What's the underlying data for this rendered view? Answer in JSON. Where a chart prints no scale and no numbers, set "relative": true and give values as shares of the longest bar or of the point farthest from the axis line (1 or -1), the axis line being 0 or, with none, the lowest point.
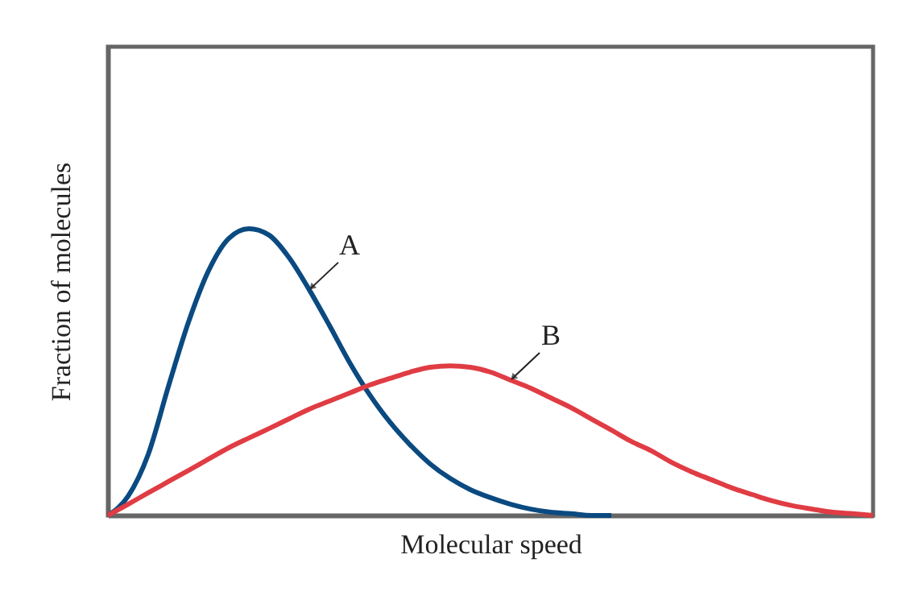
{
  "chart_data": {
    "type": "line",
    "relative": true,
    "xlabel": "Molecular speed",
    "ylabel": "Fraction of molecules",
    "categories": [
      null,
      null,
      null,
      null,
      null,
      null,
      null,
      null,
      null,
      null,
      null,
      null,
      null,
      null,
      null,
      null,
      null,
      null,
      null,
      null,
      null,
      null,
      null,
      null,
      null,
      null,
      null,
      null,
      null,
      null,
      null,
      null,
      null,
      null,
      null,
      null,
      null,
      null,
      null
    ],
    "series": [
      {
        "name": "A",
        "color": "#0a4a80",
        "values": [
          0,
          0.067,
          0.213,
          0.449,
          0.674,
          0.854,
          0.966,
          1,
          0.978,
          0.899,
          0.787,
          0.663,
          0.534,
          0.421,
          0.326,
          0.247,
          0.18,
          0.129,
          0.09,
          0.062,
          0.039,
          0.022,
          0.011,
          0.006,
          0,
          0,
          null,
          null,
          null,
          null,
          null,
          null,
          null,
          null,
          null,
          null,
          null,
          null,
          null
        ]
      },
      {
        "name": "B",
        "color": "#e03c44",
        "values": [
          0,
          0.039,
          0.079,
          0.118,
          0.157,
          0.197,
          0.236,
          0.27,
          0.303,
          0.337,
          0.371,
          0.399,
          0.427,
          0.455,
          0.478,
          0.5,
          0.517,
          0.522,
          0.517,
          0.5,
          0.472,
          0.444,
          0.41,
          0.376,
          0.337,
          0.298,
          0.258,
          0.225,
          0.185,
          0.152,
          0.124,
          0.096,
          0.073,
          0.051,
          0.034,
          0.022,
          0.011,
          0.006,
          0
        ]
      }
    ],
    "grid": false,
    "marker": "none",
    "line_style": "solid",
    "tick_labels": false
  }
}
